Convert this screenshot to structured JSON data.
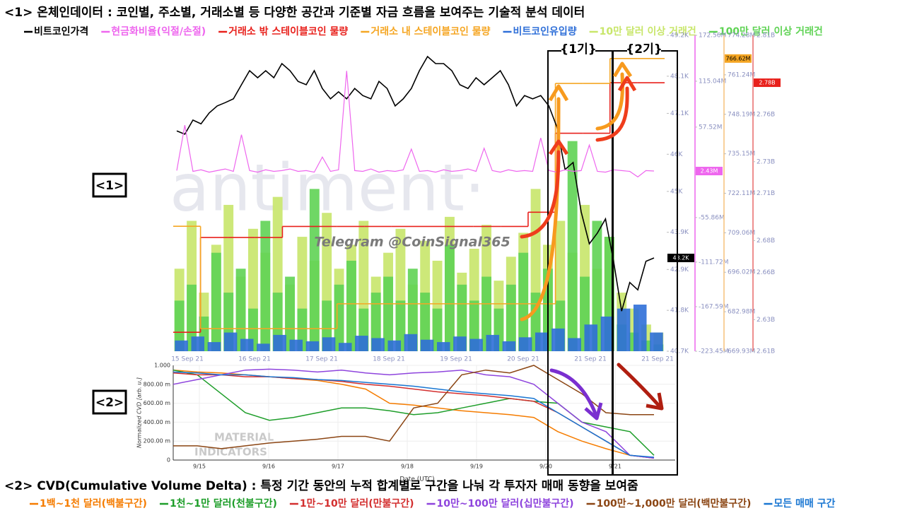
{
  "chart_data": [
    {
      "type": "combo",
      "title": "<1> 온체인데이터 : 코인별, 주소별, 거래소별 등 다양한 공간과 기준별 자금 흐름을 보여주는 기술적 분석 데이터",
      "annotations": [
        "<1>",
        "{1기}",
        "{2기}",
        "Telegram @CoinSignal365",
        "antiment·"
      ],
      "xtick_labels": [
        "15 Sep 21",
        "16 Sep 21",
        "17 Sep 21",
        "18 Sep 21",
        "19 Sep 21",
        "20 Sep 21",
        "21 Sep 21",
        "21 Sep 21"
      ],
      "ylim": [
        40.7,
        49.2
      ],
      "yticks": [
        {
          "value": 40.7,
          "label": "40.7K"
        },
        {
          "value": 41.8,
          "label": "41.8K"
        },
        {
          "value": 42.9,
          "label": "42.9K"
        },
        {
          "value": 43.9,
          "label": "43.9K"
        },
        {
          "value": 45,
          "label": "45K"
        },
        {
          "value": 46,
          "label": "46K"
        },
        {
          "value": 47.1,
          "label": "47.1K"
        },
        {
          "value": 48.1,
          "label": "48.1K"
        },
        {
          "value": 49.2,
          "label": "49.2K"
        }
      ],
      "y2lim": [
        -223.45,
        172.56
      ],
      "y2ticks": [
        {
          "value": -223.45,
          "label": "-223.45M"
        },
        {
          "value": -167.59,
          "label": "-167.59M"
        },
        {
          "value": -111.72,
          "label": "-111.72M"
        },
        {
          "value": -55.86,
          "label": "-55.86M"
        },
        {
          "value": 57.52,
          "label": "57.52M"
        },
        {
          "value": 115.04,
          "label": "115.04M"
        },
        {
          "value": 172.56,
          "label": "172.56M"
        }
      ],
      "y3lim": [
        669.93,
        774.28
      ],
      "y3ticks": [
        {
          "value": 669.93,
          "label": "669.93M"
        },
        {
          "value": 682.98,
          "label": "682.98M"
        },
        {
          "value": 696.02,
          "label": "696.02M"
        },
        {
          "value": 709.06,
          "label": "709.06M"
        },
        {
          "value": 722.11,
          "label": "722.11M"
        },
        {
          "value": 735.15,
          "label": "735.15M"
        },
        {
          "value": 748.19,
          "label": "748.19M"
        },
        {
          "value": 761.24,
          "label": "761.24M"
        },
        {
          "value": 774.28,
          "label": "774.28M"
        }
      ],
      "y4lim": [
        2.61,
        2.81
      ],
      "y4ticks": [
        {
          "value": 2.61,
          "label": "2.61B"
        },
        {
          "value": 2.63,
          "label": "2.63B"
        },
        {
          "value": 2.66,
          "label": "2.66B"
        },
        {
          "value": 2.68,
          "label": "2.68B"
        },
        {
          "value": 2.71,
          "label": "2.71B"
        },
        {
          "value": 2.73,
          "label": "2.73B"
        },
        {
          "value": 2.76,
          "label": "2.76B"
        },
        {
          "value": 2.81,
          "label": "2.81B"
        }
      ],
      "series": [
        {
          "name": "비트코인가격",
          "color": "#000000",
          "type": "line",
          "axis": "y",
          "tag": {
            "value": 43.21,
            "label": "43.2K"
          },
          "values": [
            46.63,
            46.54,
            46.92,
            46.82,
            47.11,
            47.3,
            47.39,
            47.49,
            47.87,
            48.25,
            48.06,
            48.25,
            48.06,
            48.44,
            48.25,
            47.96,
            47.87,
            48.25,
            47.77,
            47.49,
            47.68,
            47.49,
            47.77,
            47.58,
            47.49,
            47.96,
            47.77,
            47.3,
            47.49,
            47.77,
            48.25,
            48.63,
            48.44,
            48.44,
            48.25,
            47.87,
            47.77,
            48.06,
            47.87,
            48.06,
            48.25,
            47.87,
            47.3,
            47.58,
            47.49,
            47.58,
            47.3,
            46.73,
            45.59,
            45.78,
            44.45,
            43.59,
            43.88,
            44.26,
            43.12,
            41.78,
            42.55,
            42.35,
            43.12,
            43.21
          ]
        },
        {
          "name": "현금화비율(익절/손절)",
          "color": "#ee66ee",
          "type": "line",
          "axis": "y2",
          "tag": {
            "value": 2.43,
            "label": "2.43M"
          },
          "values": [
            3,
            60,
            2,
            4,
            1,
            3,
            5,
            2,
            48,
            3,
            1,
            4,
            2,
            3,
            5,
            2,
            3,
            1,
            20,
            2,
            4,
            128,
            3,
            2,
            5,
            1,
            3,
            2,
            4,
            30,
            2,
            3,
            1,
            4,
            2,
            3,
            5,
            2,
            31,
            3,
            1,
            4,
            2,
            3,
            2,
            44,
            3,
            1,
            4,
            2,
            3,
            35,
            2,
            1,
            4,
            3,
            2,
            -5,
            3,
            2.43
          ]
        },
        {
          "name": "거래소 밖 스테이블코인 물량",
          "color": "#e8211c",
          "type": "step",
          "axis": "y4",
          "tag": {
            "value": 2.78,
            "label": "2.78B"
          },
          "values": [
            2.622,
            2.682,
            2.682,
            2.682,
            2.689,
            2.689,
            2.689,
            2.689,
            2.689,
            2.689,
            2.689,
            2.689,
            2.689,
            2.698,
            2.748,
            2.748,
            2.78,
            2.78
          ]
        },
        {
          "name": "거래소 내 스테이블코인 물량",
          "color": "#f5a623",
          "type": "step",
          "axis": "y3",
          "tag": {
            "value": 766.62,
            "label": "766.62M"
          },
          "values": [
            711.2,
            677.4,
            677.4,
            677.4,
            677.4,
            677.4,
            685.6,
            685.6,
            685.6,
            685.6,
            685.6,
            685.6,
            685.6,
            685.6,
            758.4,
            758.4,
            766.62,
            766.62
          ]
        },
        {
          "name": "비트코인유입량",
          "color": "#2f6fd8",
          "type": "bar",
          "axis": "y2",
          "values": [
            -210,
            -205,
            -212,
            -200,
            -208,
            -214,
            -203,
            -209,
            -211,
            -206,
            -213,
            -204,
            -207,
            -210,
            -202,
            -209,
            -212,
            -205,
            -208,
            -203,
            -211,
            -206,
            -200,
            -195,
            -207,
            -190,
            -180,
            -170,
            -165,
            -200
          ]
        },
        {
          "name": "10만 달러 이상 거래건",
          "color": "#c8e66a",
          "type": "bar",
          "axis": "y2",
          "values": [
            -120,
            -60,
            -150,
            -90,
            -40,
            -130,
            -70,
            -100,
            -30,
            -140,
            -80,
            -110,
            -50,
            -120,
            -90,
            -60,
            -130,
            -100,
            -70,
            -140,
            -85,
            -110,
            -55,
            -125,
            -95,
            -65,
            -135,
            -105,
            -75,
            -20,
            -90,
            -60,
            -100,
            -40,
            -120,
            -80,
            -150,
            -170,
            -190,
            -200
          ]
        },
        {
          "name": "100만 달러 이상 거래건",
          "color": "#5fd354",
          "type": "bar",
          "axis": "y2",
          "values": [
            -160,
            -140,
            -180,
            -100,
            -150,
            -120,
            -170,
            -60,
            -150,
            -130,
            -170,
            -20,
            -160,
            -140,
            -110,
            -170,
            -150,
            -130,
            -160,
            -120,
            -150,
            -170,
            -90,
            -140,
            -160,
            -130,
            -170,
            -140,
            -100,
            -150,
            -120,
            -160,
            40,
            -130,
            -60,
            -80,
            -190,
            -200,
            -210,
            -215
          ]
        }
      ]
    },
    {
      "type": "line",
      "title": "<2> CVD(Cumulative Volume Delta) : 특정 기간 동안의 누적 합계별로 구간을 나눠 각 투자자 매매 동향을 보여줌",
      "annotations": [
        "<2>",
        "MATERIAL",
        "INDICATORS"
      ],
      "xlabel": "Date (UTC)",
      "ylabel": "Normalized CVD [arb. u.]",
      "xtick_labels": [
        "9/15",
        "9/16",
        "9/17",
        "9/18",
        "9/19",
        "9/20",
        "9/21"
      ],
      "ylim": [
        0,
        1
      ],
      "yticks": [
        0,
        {
          "value": 0.2,
          "label": "200.00 m"
        },
        {
          "value": 0.4,
          "label": "400.00 m"
        },
        {
          "value": 0.6,
          "label": "600.00 m"
        },
        {
          "value": 0.8,
          "label": "800.00 m"
        },
        {
          "value": 1,
          "label": "1.000"
        }
      ],
      "series": [
        {
          "name": "1백~1천 달러(백불구간)",
          "color": "#f57c00",
          "values": [
            0.95,
            0.93,
            0.92,
            0.9,
            0.88,
            0.86,
            0.84,
            0.8,
            0.75,
            0.6,
            0.58,
            0.55,
            0.52,
            0.5,
            0.48,
            0.45,
            0.3,
            0.2,
            0.12,
            0.05,
            0.02
          ]
        },
        {
          "name": "1천~1만 달러(천불구간)",
          "color": "#1e9e2a",
          "values": [
            0.95,
            0.9,
            0.7,
            0.5,
            0.42,
            0.45,
            0.5,
            0.55,
            0.55,
            0.52,
            0.48,
            0.5,
            0.55,
            0.6,
            0.65,
            0.62,
            0.6,
            0.4,
            0.35,
            0.3,
            0.05
          ]
        },
        {
          "name": "1만~10만 달러(만불구간)",
          "color": "#d32f2f",
          "values": [
            0.92,
            0.9,
            0.9,
            0.88,
            0.88,
            0.86,
            0.85,
            0.83,
            0.8,
            0.78,
            0.75,
            0.72,
            0.7,
            0.68,
            0.65,
            0.62,
            0.5,
            0.35,
            0.2,
            0.05,
            0.02
          ]
        },
        {
          "name": "10만~100만 달러(십만불구간)",
          "color": "#8e44dd",
          "values": [
            0.8,
            0.85,
            0.9,
            0.95,
            0.96,
            0.95,
            0.93,
            0.95,
            0.92,
            0.9,
            0.92,
            0.93,
            0.95,
            0.9,
            0.88,
            0.8,
            0.6,
            0.4,
            0.3,
            0.05,
            0.02
          ]
        },
        {
          "name": "100만~1,000만 달러(백만불구간)",
          "color": "#8b4513",
          "values": [
            0.15,
            0.15,
            0.12,
            0.15,
            0.18,
            0.2,
            0.22,
            0.25,
            0.25,
            0.2,
            0.55,
            0.6,
            0.9,
            0.95,
            0.92,
            1,
            0.85,
            0.7,
            0.5,
            0.48,
            0.48
          ]
        },
        {
          "name": "모든 매매 구간",
          "color": "#1976d2",
          "values": [
            0.93,
            0.92,
            0.9,
            0.9,
            0.88,
            0.87,
            0.85,
            0.84,
            0.82,
            0.8,
            0.78,
            0.75,
            0.72,
            0.7,
            0.68,
            0.65,
            0.5,
            0.35,
            0.2,
            0.05,
            0.03
          ]
        }
      ]
    }
  ]
}
